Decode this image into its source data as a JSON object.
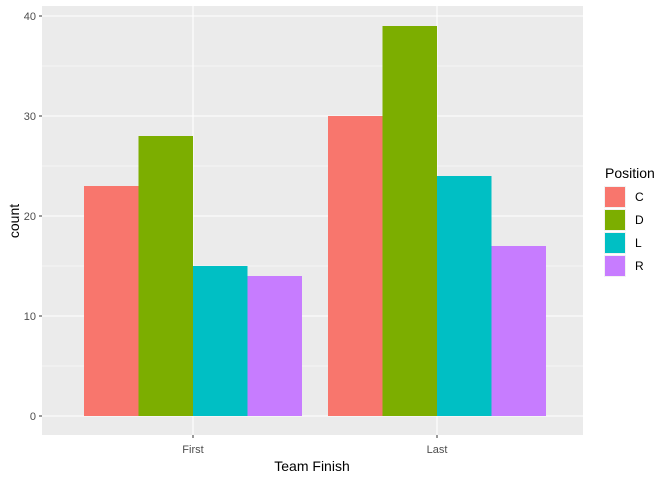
{
  "chart_data": {
    "type": "bar",
    "title": "",
    "xlabel": "Team Finish",
    "ylabel": "count",
    "categories": [
      "First",
      "Last"
    ],
    "series": [
      {
        "name": "C",
        "color": "#F8766D",
        "values": [
          23,
          30
        ]
      },
      {
        "name": "D",
        "color": "#7CAE00",
        "values": [
          28,
          39
        ]
      },
      {
        "name": "L",
        "color": "#00BFC4",
        "values": [
          15,
          24
        ]
      },
      {
        "name": "R",
        "color": "#C77CFF",
        "values": [
          14,
          17
        ]
      }
    ],
    "ylim": [
      0,
      41
    ],
    "yticks": [
      0,
      10,
      20,
      30,
      40
    ],
    "grid": true,
    "legend": {
      "title": "Position",
      "placement": "right"
    },
    "colors": {
      "panel_background": "#EBEBEB",
      "grid": "#FFFFFF"
    }
  }
}
